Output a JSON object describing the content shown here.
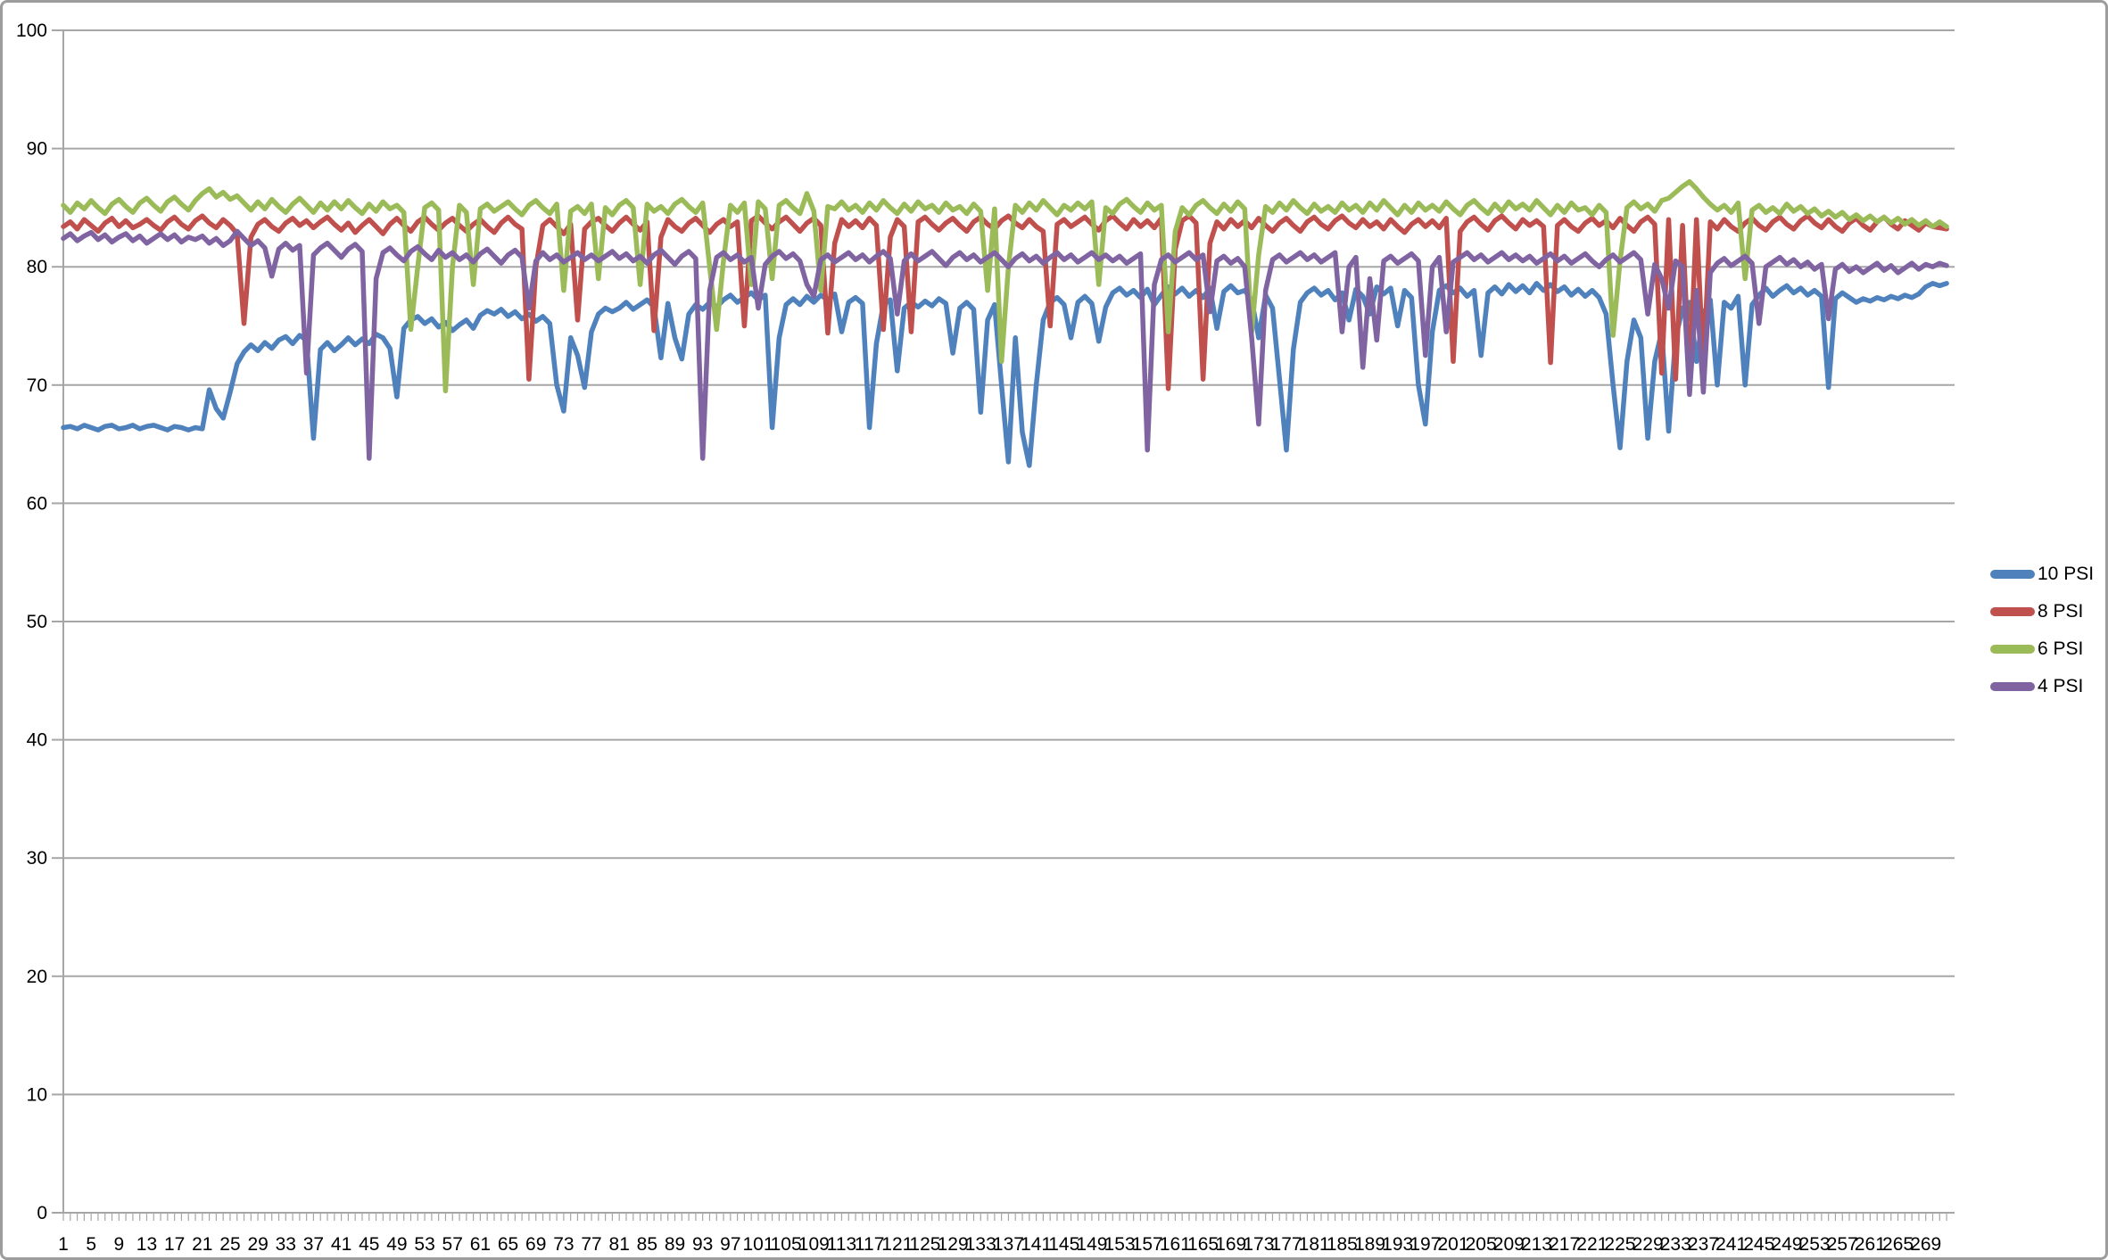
{
  "chart_data": {
    "type": "line",
    "title": "",
    "xlabel": "",
    "ylabel": "",
    "x_start": 1,
    "x_interval": 1,
    "point_count": 272,
    "ylim": [
      0,
      100
    ],
    "y_tick_step": 10,
    "y_tick_labels": [
      "0",
      "10",
      "20",
      "30",
      "40",
      "50",
      "60",
      "70",
      "80",
      "90",
      "100"
    ],
    "x_tick_labels": [
      1,
      5,
      9,
      13,
      17,
      21,
      25,
      29,
      33,
      37,
      41,
      45,
      49,
      53,
      57,
      61,
      65,
      69,
      73,
      77,
      81,
      85,
      89,
      93,
      97,
      101,
      105,
      109,
      113,
      117,
      121,
      125,
      129,
      133,
      137,
      141,
      145,
      149,
      153,
      157,
      161,
      165,
      169,
      173,
      177,
      181,
      185,
      189,
      193,
      197,
      201,
      205,
      209,
      213,
      217,
      221,
      225,
      229,
      233,
      237,
      241,
      245,
      249,
      253,
      257,
      261,
      265,
      269
    ],
    "grid": true,
    "legend_position": "right",
    "colors": {
      "grid": "#a6a6a6",
      "axis": "#a6a6a6",
      "label": "#000000",
      "background": "#ffffff",
      "frame_border": "#9d9d9d"
    },
    "series": [
      {
        "name": "10 PSI",
        "color": "#4F81BD",
        "values": [
          66.4,
          66.5,
          66.3,
          66.6,
          66.4,
          66.2,
          66.5,
          66.6,
          66.3,
          66.4,
          66.6,
          66.3,
          66.5,
          66.6,
          66.4,
          66.2,
          66.5,
          66.4,
          66.2,
          66.4,
          66.3,
          69.6,
          68.0,
          67.2,
          69.4,
          71.8,
          72.8,
          73.4,
          72.9,
          73.6,
          73.1,
          73.8,
          74.1,
          73.5,
          74.2,
          73.8,
          65.5,
          73.0,
          73.6,
          72.9,
          73.4,
          74.0,
          73.4,
          73.9,
          73.5,
          74.3,
          74.0,
          73.1,
          69.0,
          74.8,
          75.5,
          75.8,
          75.2,
          75.6,
          74.9,
          75.3,
          74.6,
          75.1,
          75.5,
          74.8,
          75.9,
          76.3,
          76.0,
          76.4,
          75.8,
          76.2,
          75.6,
          76.0,
          75.4,
          75.8,
          75.2,
          70.0,
          67.8,
          74.0,
          72.5,
          69.8,
          74.5,
          76.0,
          76.5,
          76.2,
          76.5,
          77.0,
          76.4,
          76.8,
          77.2,
          76.6,
          72.3,
          76.9,
          74.0,
          72.2,
          76.0,
          76.8,
          76.4,
          77.0,
          76.6,
          77.2,
          77.6,
          77.0,
          77.4,
          77.8,
          77.2,
          77.6,
          66.4,
          74.0,
          76.8,
          77.3,
          76.8,
          77.5,
          77.0,
          77.6,
          77.2,
          77.7,
          74.5,
          77.0,
          77.4,
          76.9,
          66.4,
          73.5,
          76.8,
          77.2,
          71.2,
          76.5,
          77.0,
          76.6,
          77.1,
          76.7,
          77.3,
          76.9,
          72.7,
          76.5,
          77.0,
          76.4,
          67.7,
          75.5,
          76.8,
          70.0,
          63.5,
          74.0,
          66.0,
          63.2,
          70.0,
          75.5,
          77.0,
          77.4,
          76.8,
          74.0,
          77.0,
          77.5,
          76.9,
          73.7,
          76.6,
          77.8,
          78.2,
          77.6,
          78.0,
          77.4,
          78.1,
          76.8,
          77.6,
          78.3,
          77.7,
          78.2,
          77.5,
          78.0,
          77.4,
          78.2,
          74.8,
          77.9,
          78.4,
          77.8,
          78.0,
          77.2,
          74.0,
          77.6,
          76.5,
          70.5,
          64.5,
          73.0,
          77.0,
          77.8,
          78.2,
          77.6,
          78.0,
          77.2,
          77.8,
          75.5,
          78.1,
          77.5,
          76.0,
          78.3,
          77.7,
          78.2,
          75.0,
          78.0,
          77.4,
          70.0,
          66.7,
          74.5,
          78.0,
          78.4,
          77.8,
          78.2,
          77.5,
          78.0,
          72.5,
          77.8,
          78.3,
          77.7,
          78.5,
          77.9,
          78.4,
          77.8,
          78.6,
          78.0,
          78.5,
          77.9,
          78.3,
          77.6,
          78.1,
          77.5,
          78.0,
          77.4,
          76.0,
          70.0,
          64.7,
          72.0,
          75.5,
          74.0,
          65.5,
          72.0,
          74.5,
          66.1,
          74.0,
          76.5,
          77.0,
          72.0,
          76.0,
          77.2,
          70.0,
          77.0,
          76.5,
          77.5,
          70.0,
          76.8,
          77.6,
          78.2,
          77.5,
          78.0,
          78.4,
          77.8,
          78.2,
          77.6,
          78.0,
          77.5,
          69.8,
          77.3,
          77.8,
          77.4,
          77.0,
          77.3,
          77.1,
          77.4,
          77.2,
          77.5,
          77.3,
          77.6,
          77.4,
          77.7,
          78.3,
          78.6,
          78.4,
          78.6
        ]
      },
      {
        "name": "8 PSI",
        "color": "#C0504D",
        "values": [
          83.4,
          83.8,
          83.2,
          84.0,
          83.5,
          83.0,
          83.7,
          84.1,
          83.4,
          83.9,
          83.3,
          83.6,
          84.0,
          83.5,
          83.1,
          83.8,
          84.2,
          83.6,
          83.2,
          83.9,
          84.3,
          83.7,
          83.3,
          84.0,
          83.5,
          82.8,
          75.2,
          82.5,
          83.6,
          84.0,
          83.4,
          83.0,
          83.7,
          84.1,
          83.5,
          83.9,
          83.3,
          83.8,
          84.2,
          83.6,
          83.1,
          83.7,
          82.9,
          83.5,
          84.0,
          83.4,
          82.8,
          83.6,
          84.1,
          83.5,
          83.0,
          83.8,
          84.2,
          83.6,
          83.1,
          83.7,
          84.1,
          83.5,
          83.0,
          83.6,
          84.0,
          83.4,
          82.9,
          83.7,
          84.2,
          83.6,
          83.2,
          70.5,
          80.0,
          83.5,
          84.0,
          83.4,
          82.8,
          83.6,
          75.5,
          83.2,
          83.8,
          84.1,
          83.5,
          83.0,
          83.7,
          84.2,
          83.6,
          83.1,
          83.8,
          74.6,
          82.5,
          84.0,
          83.4,
          83.0,
          83.7,
          84.1,
          83.5,
          82.9,
          83.6,
          84.0,
          83.4,
          83.8,
          75.0,
          83.9,
          84.3,
          83.7,
          83.2,
          83.8,
          84.2,
          83.6,
          83.0,
          83.7,
          84.1,
          83.5,
          74.4,
          82.0,
          84.0,
          83.4,
          83.9,
          83.3,
          84.1,
          83.5,
          74.7,
          82.5,
          84.0,
          83.4,
          74.5,
          83.8,
          84.2,
          83.6,
          83.1,
          83.7,
          84.1,
          83.5,
          83.0,
          83.8,
          84.2,
          83.6,
          83.2,
          83.9,
          84.3,
          83.7,
          83.3,
          84.0,
          83.4,
          83.0,
          75.0,
          83.6,
          84.0,
          83.4,
          83.8,
          84.2,
          83.6,
          83.1,
          83.9,
          84.3,
          83.7,
          83.2,
          84.0,
          83.4,
          83.9,
          83.3,
          84.1,
          69.7,
          81.5,
          83.9,
          84.3,
          83.7,
          70.5,
          82.0,
          83.8,
          83.2,
          84.0,
          83.4,
          83.9,
          83.3,
          84.1,
          83.5,
          83.0,
          83.7,
          84.1,
          83.5,
          83.0,
          83.8,
          84.2,
          83.6,
          83.2,
          83.9,
          84.3,
          83.7,
          83.3,
          84.0,
          83.4,
          83.8,
          83.2,
          84.0,
          83.4,
          82.9,
          83.6,
          84.0,
          83.4,
          83.9,
          83.3,
          84.1,
          72.0,
          83.0,
          83.8,
          84.2,
          83.6,
          83.1,
          83.9,
          84.3,
          83.7,
          83.2,
          84.0,
          83.5,
          83.9,
          83.4,
          71.9,
          83.5,
          84.0,
          83.4,
          83.0,
          83.7,
          84.1,
          83.5,
          83.9,
          83.3,
          84.1,
          83.5,
          83.0,
          83.8,
          84.2,
          83.6,
          71.0,
          84.0,
          70.5,
          83.5,
          70.3,
          84.0,
          71.5,
          83.8,
          83.2,
          84.0,
          83.4,
          83.0,
          83.7,
          84.1,
          83.5,
          83.1,
          83.8,
          84.2,
          83.6,
          83.2,
          83.9,
          84.3,
          83.7,
          83.3,
          84.0,
          83.4,
          83.0,
          83.7,
          84.1,
          83.5,
          83.1,
          83.8,
          84.2,
          83.6,
          83.2,
          83.9,
          83.5,
          83.1,
          83.7,
          83.4,
          83.3,
          83.2
        ]
      },
      {
        "name": "6 PSI",
        "color": "#9BBB59",
        "values": [
          85.2,
          84.6,
          85.4,
          84.9,
          85.6,
          85.0,
          84.5,
          85.3,
          85.7,
          85.1,
          84.6,
          85.4,
          85.8,
          85.2,
          84.7,
          85.5,
          85.9,
          85.3,
          84.8,
          85.6,
          86.2,
          86.6,
          85.9,
          86.3,
          85.7,
          86.0,
          85.4,
          84.8,
          85.5,
          84.9,
          85.7,
          85.1,
          84.6,
          85.3,
          85.8,
          85.2,
          84.6,
          85.4,
          84.8,
          85.5,
          84.9,
          85.6,
          85.0,
          84.5,
          85.3,
          84.7,
          85.5,
          84.9,
          85.2,
          84.6,
          74.7,
          80.0,
          85.0,
          85.4,
          84.8,
          69.5,
          80.0,
          85.2,
          84.6,
          78.5,
          84.9,
          85.3,
          84.7,
          85.1,
          85.5,
          84.9,
          84.4,
          85.2,
          85.6,
          85.0,
          84.5,
          85.3,
          78.0,
          84.7,
          85.1,
          84.5,
          85.3,
          79.0,
          85.0,
          84.4,
          85.2,
          85.6,
          85.0,
          78.5,
          85.3,
          84.7,
          85.1,
          84.5,
          85.3,
          85.7,
          85.1,
          84.6,
          85.4,
          80.0,
          74.7,
          80.5,
          85.2,
          84.6,
          85.4,
          78.5,
          85.5,
          84.9,
          79.0,
          85.2,
          85.6,
          85.0,
          84.5,
          86.2,
          84.7,
          78.0,
          85.1,
          84.9,
          85.5,
          84.8,
          85.2,
          84.6,
          85.4,
          84.8,
          85.6,
          85.0,
          84.5,
          85.3,
          84.7,
          85.5,
          84.9,
          85.2,
          84.6,
          85.4,
          84.8,
          85.1,
          84.5,
          85.3,
          84.7,
          78.0,
          84.9,
          72.0,
          80.0,
          85.2,
          84.6,
          85.4,
          84.8,
          85.6,
          85.0,
          84.4,
          85.2,
          84.8,
          85.4,
          84.9,
          85.5,
          78.5,
          85.0,
          84.5,
          85.3,
          85.7,
          85.1,
          84.6,
          85.4,
          84.8,
          85.2,
          74.5,
          83.0,
          85.0,
          84.4,
          85.2,
          85.6,
          85.0,
          84.5,
          85.3,
          84.7,
          85.5,
          84.9,
          74.5,
          81.0,
          85.1,
          84.6,
          85.4,
          84.8,
          85.6,
          85.0,
          84.5,
          85.3,
          84.7,
          85.1,
          84.6,
          85.4,
          84.8,
          85.2,
          84.6,
          85.4,
          84.8,
          85.6,
          85.0,
          84.4,
          85.2,
          84.6,
          85.4,
          84.8,
          85.2,
          84.7,
          85.5,
          84.9,
          84.4,
          85.2,
          85.6,
          85.0,
          84.5,
          85.3,
          84.7,
          85.5,
          84.9,
          85.3,
          84.8,
          85.6,
          85.0,
          84.4,
          85.2,
          84.6,
          85.4,
          84.8,
          85.0,
          84.4,
          85.2,
          84.6,
          74.2,
          80.5,
          85.0,
          85.5,
          84.9,
          85.3,
          84.7,
          85.6,
          85.8,
          86.3,
          86.8,
          87.2,
          86.6,
          85.9,
          85.3,
          84.8,
          85.2,
          84.6,
          85.4,
          79.0,
          84.8,
          85.2,
          84.6,
          85.0,
          84.5,
          85.3,
          84.7,
          85.1,
          84.5,
          84.9,
          84.3,
          84.7,
          84.2,
          84.6,
          84.0,
          84.4,
          83.9,
          84.3,
          83.8,
          84.2,
          83.7,
          84.1,
          83.6,
          84.0,
          83.5,
          83.9,
          83.4,
          83.8,
          83.4
        ]
      },
      {
        "name": "4 PSI",
        "color": "#8064A2",
        "values": [
          82.4,
          82.8,
          82.2,
          82.6,
          82.9,
          82.3,
          82.7,
          82.1,
          82.5,
          82.8,
          82.2,
          82.6,
          82.0,
          82.4,
          82.8,
          82.3,
          82.7,
          82.1,
          82.5,
          82.3,
          82.6,
          82.0,
          82.4,
          81.8,
          82.2,
          83.0,
          82.4,
          81.8,
          82.2,
          81.6,
          79.2,
          81.5,
          82.0,
          81.4,
          81.8,
          71.0,
          81.0,
          81.6,
          82.0,
          81.4,
          80.8,
          81.5,
          81.9,
          81.3,
          63.8,
          79.0,
          81.2,
          81.6,
          81.0,
          80.5,
          81.3,
          81.7,
          81.1,
          80.6,
          81.4,
          80.8,
          81.2,
          80.6,
          81.0,
          80.4,
          81.1,
          81.5,
          80.9,
          80.3,
          81.0,
          81.4,
          80.8,
          76.5,
          80.5,
          81.2,
          80.6,
          81.0,
          80.4,
          80.8,
          81.2,
          80.6,
          81.0,
          80.5,
          80.9,
          81.3,
          80.7,
          81.1,
          80.5,
          80.9,
          80.3,
          81.0,
          81.4,
          80.8,
          80.2,
          80.9,
          81.3,
          80.7,
          63.8,
          78.0,
          80.8,
          81.2,
          80.6,
          81.0,
          80.4,
          80.8,
          76.5,
          80.2,
          80.9,
          81.3,
          80.7,
          81.1,
          80.5,
          78.5,
          77.5,
          80.6,
          81.0,
          80.4,
          80.8,
          81.2,
          80.6,
          81.0,
          80.4,
          80.9,
          81.3,
          80.7,
          76.0,
          80.5,
          81.1,
          80.5,
          80.9,
          81.3,
          80.7,
          80.1,
          80.8,
          81.2,
          80.6,
          81.0,
          80.4,
          80.8,
          81.2,
          80.6,
          80.0,
          80.7,
          81.1,
          80.5,
          80.9,
          80.3,
          80.8,
          81.2,
          80.6,
          81.0,
          80.4,
          80.8,
          81.2,
          80.6,
          81.0,
          80.5,
          80.9,
          80.3,
          80.7,
          81.1,
          64.5,
          78.5,
          80.6,
          81.0,
          80.4,
          80.8,
          81.2,
          80.6,
          81.0,
          76.2,
          80.5,
          80.9,
          80.3,
          80.7,
          80.0,
          74.0,
          66.7,
          78.0,
          80.6,
          81.0,
          80.4,
          80.8,
          81.2,
          80.6,
          81.0,
          80.4,
          80.8,
          81.2,
          74.5,
          80.0,
          80.8,
          71.5,
          79.0,
          73.8,
          80.5,
          80.9,
          80.3,
          80.7,
          81.1,
          80.5,
          72.5,
          80.0,
          80.8,
          74.5,
          80.4,
          80.8,
          81.2,
          80.6,
          81.0,
          80.4,
          80.8,
          81.2,
          80.6,
          81.0,
          80.5,
          80.9,
          80.3,
          80.7,
          81.1,
          80.5,
          80.9,
          80.3,
          80.7,
          81.1,
          80.5,
          80.0,
          80.6,
          81.0,
          80.4,
          80.8,
          81.2,
          80.6,
          76.0,
          80.2,
          79.0,
          76.5,
          80.5,
          80.0,
          69.2,
          78.0,
          69.4,
          79.5,
          80.3,
          80.7,
          80.1,
          80.5,
          80.9,
          80.3,
          75.2,
          80.0,
          80.4,
          80.8,
          80.2,
          80.6,
          80.0,
          80.4,
          79.8,
          80.2,
          75.6,
          79.8,
          80.2,
          79.6,
          80.0,
          79.5,
          79.9,
          80.3,
          79.7,
          80.1,
          79.5,
          79.9,
          80.3,
          79.8,
          80.2,
          80.0,
          80.3,
          80.1
        ]
      }
    ]
  },
  "legend": {
    "items": [
      {
        "label": "10 PSI"
      },
      {
        "label": "8 PSI"
      },
      {
        "label": "6 PSI"
      },
      {
        "label": "4 PSI"
      }
    ]
  }
}
